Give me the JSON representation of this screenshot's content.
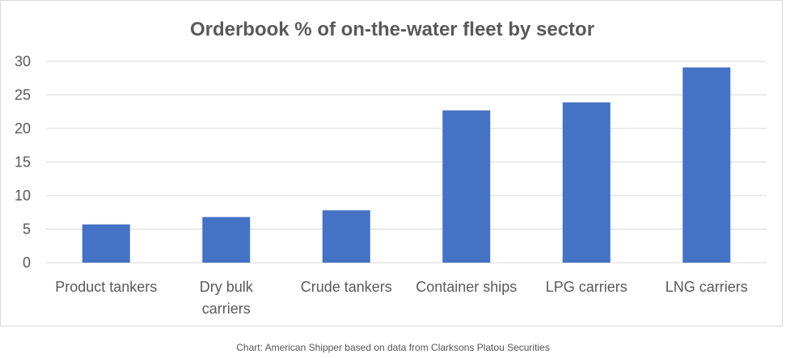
{
  "chart_data": {
    "type": "bar",
    "title": "Orderbook % of on-the-water fleet by sector",
    "categories": [
      "Product tankers",
      "Dry bulk carriers",
      "Crude tankers",
      "Container ships",
      "LPG carriers",
      "LNG carriers"
    ],
    "category_lines": [
      [
        "Product tankers"
      ],
      [
        "Dry bulk",
        "carriers"
      ],
      [
        "Crude tankers"
      ],
      [
        "Container ships"
      ],
      [
        "LPG carriers"
      ],
      [
        "LNG carriers"
      ]
    ],
    "values": [
      5.7,
      6.8,
      7.8,
      22.7,
      23.9,
      29.1
    ],
    "ylim": [
      0,
      30
    ],
    "yticks": [
      0,
      5,
      10,
      15,
      20,
      25,
      30
    ],
    "xlabel": "",
    "ylabel": "",
    "grid": true,
    "legend": "none",
    "bar_color": "#4472c4",
    "grid_color": "#d9d9d9"
  },
  "caption": "Chart: American Shipper based on data from Clarksons Platou Securities"
}
